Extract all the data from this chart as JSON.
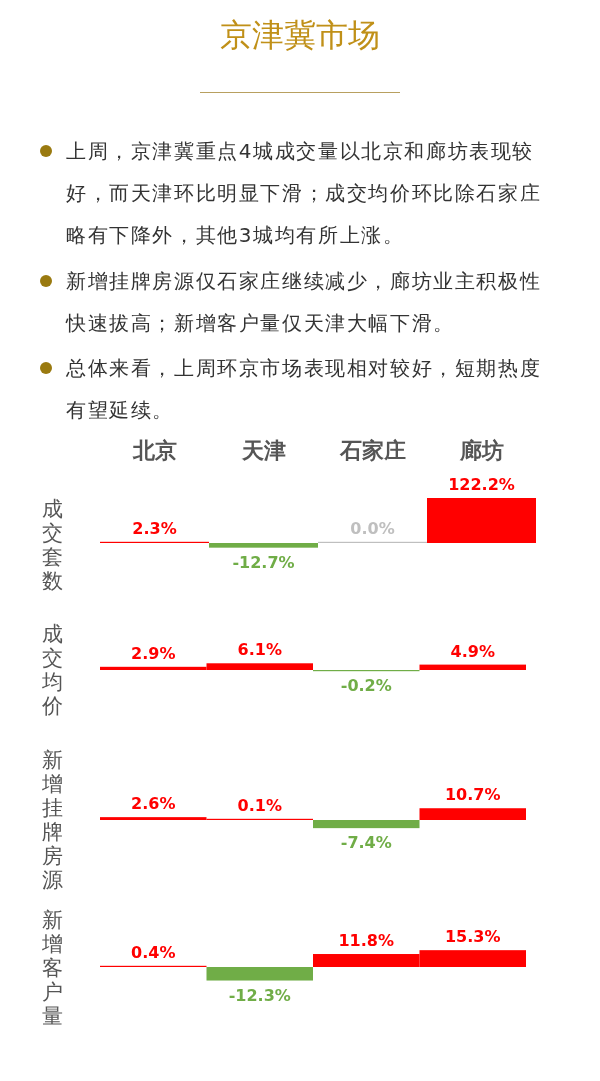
{
  "chart_data": [
    {
      "type": "bar",
      "title": "京津冀市场",
      "annotations": [
        "上周，京津冀重点4城成交量以北京和廊坊表现较好，而天津环比明显下滑；成交均价环比除石家庄略有下降外，其他3城均有所上涨。",
        "新增挂牌房源仅石家庄继续减少，廊坊业主积极性快速拔高；新增客户量仅天津大幅下滑。",
        "总体来看，上周环京市场表现相对较好，短期热度有望延续。"
      ],
      "ylabel": "成交套数",
      "categories": [
        "北京",
        "天津",
        "石家庄",
        "廊坊"
      ],
      "values": [
        2.3,
        -12.7,
        0.0,
        122.2
      ],
      "colors": [
        "#ff0000",
        "#70ad47",
        "#bfbfbf",
        "#ff0000"
      ],
      "value_labels": [
        "2.3%",
        "-12.7%",
        "0.0%",
        "122.2%"
      ]
    },
    {
      "type": "bar",
      "ylabel": "成交均价",
      "categories": [
        null,
        null,
        null,
        null
      ],
      "values": [
        2.9,
        6.1,
        -0.2,
        4.9
      ],
      "colors": [
        "#ff0000",
        "#ff0000",
        "#70ad47",
        "#ff0000"
      ],
      "value_labels": [
        "2.9%",
        "6.1%",
        "-0.2%",
        "4.9%"
      ]
    },
    {
      "type": "bar",
      "ylabel": "新增挂牌房源",
      "categories": [
        null,
        null,
        null,
        null
      ],
      "values": [
        2.6,
        0.1,
        -7.4,
        10.7
      ],
      "colors": [
        "#ff0000",
        "#ff0000",
        "#70ad47",
        "#ff0000"
      ],
      "value_labels": [
        "2.6%",
        "0.1%",
        "-7.4%",
        "10.7%"
      ]
    },
    {
      "type": "bar",
      "ylabel": "新增客户量",
      "categories": [
        null,
        null,
        null,
        null
      ],
      "values": [
        0.4,
        -12.3,
        11.8,
        15.3
      ],
      "colors": [
        "#ff0000",
        "#70ad47",
        "#ff0000",
        "#ff0000"
      ],
      "value_labels": [
        "0.4%",
        "-12.3%",
        "11.8%",
        "15.3%"
      ]
    }
  ]
}
